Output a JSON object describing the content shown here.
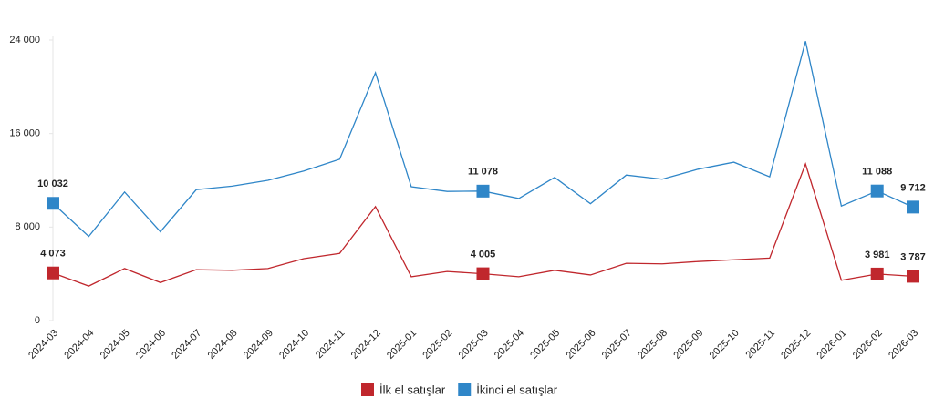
{
  "chart_data": {
    "type": "line",
    "categories": [
      "2024-03",
      "2024-04",
      "2024-05",
      "2024-06",
      "2024-07",
      "2024-08",
      "2024-09",
      "2024-10",
      "2024-11",
      "2024-12",
      "2025-01",
      "2025-02",
      "2025-03",
      "2025-04",
      "2025-05",
      "2025-06",
      "2025-07",
      "2025-08",
      "2025-09",
      "2025-10",
      "2025-11",
      "2025-12",
      "2026-01",
      "2026-02",
      "2026-03"
    ],
    "series": [
      {
        "name": "İlk el satışlar",
        "color": "#c0272d",
        "values": [
          4073,
          2950,
          4450,
          3250,
          4350,
          4300,
          4450,
          5300,
          5750,
          9750,
          3750,
          4200,
          4005,
          3750,
          4300,
          3900,
          4900,
          4850,
          5050,
          5200,
          5350,
          13400,
          3450,
          3981,
          3787
        ],
        "value_labels": [
          "4 073",
          null,
          null,
          null,
          null,
          null,
          null,
          null,
          null,
          null,
          null,
          null,
          "4 005",
          null,
          null,
          null,
          null,
          null,
          null,
          null,
          null,
          null,
          null,
          "3 981",
          "3 787"
        ]
      },
      {
        "name": "İkinci el satışlar",
        "color": "#2f86c8",
        "values": [
          10032,
          7200,
          11000,
          7600,
          11200,
          11500,
          12000,
          12800,
          13800,
          21200,
          11450,
          11050,
          11078,
          10450,
          12250,
          10000,
          12450,
          12100,
          12950,
          13550,
          12300,
          23900,
          9800,
          11088,
          9712
        ],
        "value_labels": [
          "10 032",
          null,
          null,
          null,
          null,
          null,
          null,
          null,
          null,
          null,
          null,
          null,
          "11 078",
          null,
          null,
          null,
          null,
          null,
          null,
          null,
          null,
          null,
          null,
          "11 088",
          "9 712"
        ]
      }
    ],
    "ylim": [
      0,
      24000
    ],
    "yticks": [
      0,
      {
        "value": 8000,
        "label": "8 000"
      },
      {
        "value": 16000,
        "label": "16 000"
      },
      {
        "value": 24000,
        "label": "24 000"
      }
    ],
    "grid": false
  }
}
